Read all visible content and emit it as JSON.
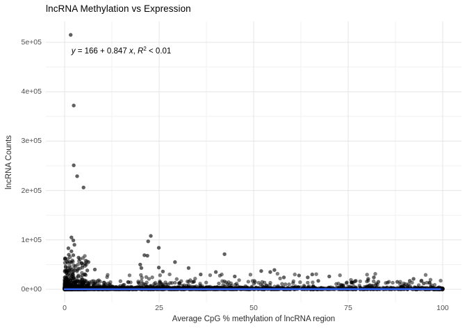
{
  "chart_data": {
    "type": "scatter",
    "title": "lncRNA Methylation vs Expression",
    "xlabel": "Average CpG % methylation of lncRNA region",
    "ylabel": "lncRNA Counts",
    "xlim": [
      0,
      100
    ],
    "ylim": [
      0,
      515000
    ],
    "x_ticks": [
      0,
      25,
      50,
      75,
      100
    ],
    "x_tick_labels": [
      "0",
      "25",
      "50",
      "75",
      "100"
    ],
    "x_minor_ticks": [
      12.5,
      37.5,
      62.5,
      87.5
    ],
    "y_ticks": [
      0,
      100000,
      200000,
      300000,
      400000,
      500000
    ],
    "y_tick_labels": [
      "0e+00",
      "1e+05",
      "2e+05",
      "3e+05",
      "4e+05",
      "5e+05"
    ],
    "y_minor_ticks": [
      50000,
      150000,
      250000,
      350000,
      450000
    ],
    "grid": "major-and-minor",
    "legend": "none",
    "background": "#ffffff",
    "grid_major_color": "#e4e4e4",
    "grid_minor_color": "#f1f1f1",
    "annotation": {
      "text_plain": "y = 166 + 0.847 x, R² < 0.01",
      "parts": {
        "y_var": "y",
        "equals_segment": " = 166 + 0.847 ",
        "x_var": "x",
        "comma": ", ",
        "r_var": "R",
        "exponent": "2",
        "tail": " < 0.01"
      }
    },
    "regression_line": {
      "intercept": 166,
      "slope": 0.847,
      "r_squared": "< 0.01",
      "color": "#3366FF",
      "x_start": 0,
      "x_end": 100
    },
    "point_style": {
      "color": "#000000",
      "opacity": 0.5,
      "radius": 2.5
    },
    "notable_points": [
      [
        1.6,
        515000
      ],
      [
        2.4,
        372000
      ],
      [
        2.4,
        251000
      ],
      [
        3.3,
        229000
      ],
      [
        5.0,
        206000
      ],
      [
        1.8,
        105000
      ],
      [
        2.3,
        99000
      ],
      [
        2.6,
        90000
      ],
      [
        1.0,
        83000
      ],
      [
        1.8,
        77000
      ],
      [
        1.1,
        70000
      ],
      [
        2.3,
        69000
      ],
      [
        3.7,
        64000
      ],
      [
        0.6,
        56000
      ],
      [
        1.4,
        55000
      ],
      [
        4.5,
        53000
      ],
      [
        5.4,
        52000
      ],
      [
        6.3,
        55000
      ],
      [
        2.9,
        47000
      ],
      [
        0.8,
        43000
      ],
      [
        8.0,
        40000
      ],
      [
        6.0,
        38000
      ],
      [
        22.8,
        108000
      ],
      [
        22.1,
        97000
      ],
      [
        24.9,
        84000
      ],
      [
        21.1,
        69000
      ],
      [
        21.9,
        68000
      ],
      [
        20.0,
        50000
      ],
      [
        20.3,
        43000
      ],
      [
        24.9,
        44000
      ],
      [
        29.2,
        55000
      ],
      [
        32.8,
        43000
      ],
      [
        26.0,
        36000
      ],
      [
        42.3,
        71000
      ],
      [
        54.4,
        35000
      ],
      [
        40.0,
        35000
      ],
      [
        52.0,
        37000
      ],
      [
        55.5,
        39000
      ],
      [
        36.0,
        30000
      ],
      [
        45.0,
        26000
      ],
      [
        58.0,
        24000
      ],
      [
        62.0,
        28000
      ],
      [
        64.3,
        24000
      ],
      [
        65.5,
        30000
      ],
      [
        67.1,
        17000
      ],
      [
        70.0,
        26000
      ],
      [
        76.0,
        14000
      ],
      [
        77.0,
        17000
      ],
      [
        80.3,
        21000
      ],
      [
        81.8,
        24000
      ],
      [
        83.0,
        15000
      ],
      [
        88.0,
        15000
      ],
      [
        91.3,
        17000
      ],
      [
        92.3,
        21000
      ],
      [
        95.0,
        12000
      ],
      [
        100,
        1200
      ]
    ],
    "dense_clusters": [
      {
        "name": "baseline-band",
        "n": 1500,
        "x": {
          "base": 0,
          "range": 100,
          "pow": 2.0
        },
        "y": {
          "base": 0,
          "range": 4500,
          "pow": 3.0
        }
      },
      {
        "name": "baseline-fringe",
        "n": 480,
        "x": {
          "base": 0,
          "range": 100,
          "pow": 2.2
        },
        "y": {
          "base": 1500,
          "range": 16000,
          "pow": 2.5
        }
      },
      {
        "name": "left-column",
        "n": 270,
        "x": {
          "base": 0,
          "range": 6,
          "pow": 1.6
        },
        "y": {
          "base": 0,
          "range": 68000,
          "pow": 3.8
        }
      },
      {
        "name": "mid-scatter",
        "n": 160,
        "x": {
          "base": 2,
          "range": 96,
          "pow": 1.5
        },
        "y": {
          "base": 2000,
          "range": 30000,
          "pow": 2.6
        }
      },
      {
        "name": "right-end-blob",
        "n": 80,
        "x": {
          "base": 100,
          "range": -2.5,
          "pow": 2.0
        },
        "y": {
          "base": 0,
          "range": 1800,
          "pow": 2.5
        }
      }
    ],
    "seed": 42
  }
}
